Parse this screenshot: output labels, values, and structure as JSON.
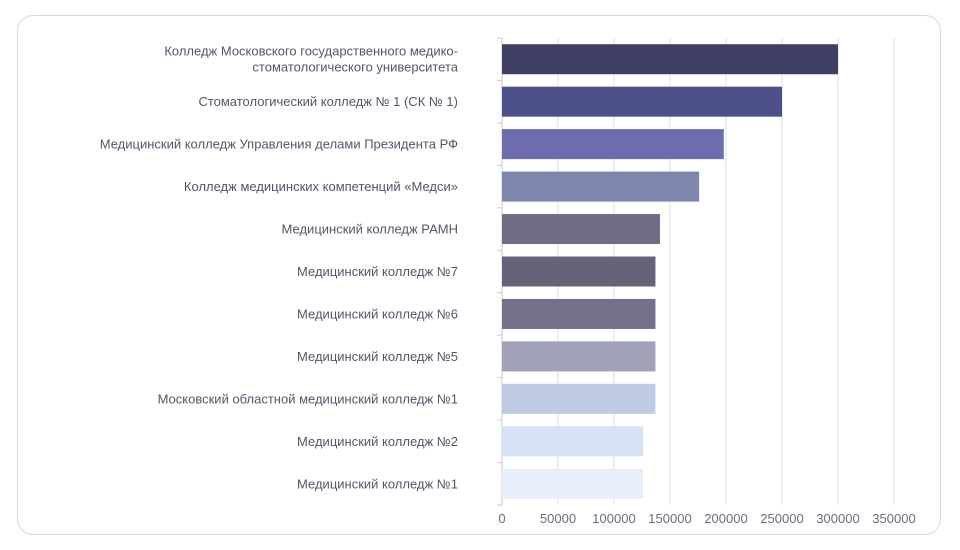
{
  "chart_data": {
    "type": "bar",
    "orientation": "horizontal",
    "categories": [
      [
        "Колледж Московского государственного медико-",
        "стоматологического университета"
      ],
      [
        "Стоматологический колледж № 1 (СК № 1)"
      ],
      [
        "Медицинский колледж Управления делами Президента РФ"
      ],
      [
        "Колледж медицинских компетенций «Медси»"
      ],
      [
        "Медицинский колледж РАМН"
      ],
      [
        "Медицинский колледж №7"
      ],
      [
        "Медицинский колледж №6"
      ],
      [
        "Медицинский колледж №5"
      ],
      [
        "Московский областной медицинский колледж №1"
      ],
      [
        "Медицинский колледж №2"
      ],
      [
        "Медицинский колледж №1"
      ]
    ],
    "values": [
      300000,
      250000,
      198000,
      176000,
      141000,
      137000,
      137000,
      137000,
      137000,
      126000,
      126000
    ],
    "colors": [
      "#403f65",
      "#4e5089",
      "#6b6dac",
      "#7e86ad",
      "#6f6d88",
      "#65637a",
      "#73718c",
      "#a1a1b7",
      "#bfcbe5",
      "#d6e1f3",
      "#e7effc"
    ],
    "xlim": [
      0,
      375000
    ],
    "xticks": [
      0,
      50000,
      100000,
      150000,
      200000,
      250000,
      300000,
      350000
    ],
    "grid": true,
    "title": "",
    "xlabel": "",
    "ylabel": ""
  }
}
